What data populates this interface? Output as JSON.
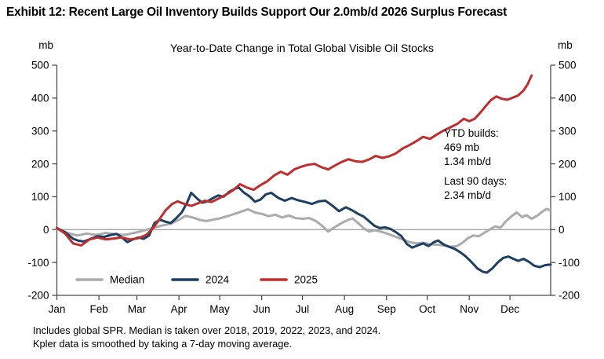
{
  "header": {
    "title": "Exhibit 12: Recent Large Oil Inventory Builds Support Our 2.0mb/d 2026 Surplus Forecast"
  },
  "chart_data": {
    "type": "line",
    "title": "Year-to-Date Change in Total Global Visible Oil Stocks",
    "y_unit_label": "mb",
    "ylim": [
      -200,
      500
    ],
    "yticks": [
      500,
      400,
      300,
      200,
      100,
      0,
      "-100",
      "-200"
    ],
    "ytick_values": [
      500,
      400,
      300,
      200,
      100,
      0,
      -100,
      -200
    ],
    "x_categories": [
      "Jan",
      "Feb",
      "Mar",
      "Apr",
      "May",
      "Jun",
      "Jul",
      "Aug",
      "Sep",
      "Oct",
      "Nov",
      "Dec"
    ],
    "x_month_start_days": [
      0,
      31,
      59,
      90,
      120,
      151,
      181,
      212,
      243,
      273,
      304,
      334
    ],
    "x_axis_days": 364,
    "grid": "zero-line-only",
    "legend_position": "inside-bottom-left",
    "series": [
      {
        "name": "Median",
        "color": "#a9abae",
        "points": [
          [
            0,
            2
          ],
          [
            8,
            -10
          ],
          [
            15,
            -18
          ],
          [
            22,
            -12
          ],
          [
            29,
            -16
          ],
          [
            36,
            -10
          ],
          [
            43,
            -14
          ],
          [
            50,
            -16
          ],
          [
            57,
            -10
          ],
          [
            63,
            -4
          ],
          [
            70,
            4
          ],
          [
            77,
            12
          ],
          [
            84,
            18
          ],
          [
            90,
            30
          ],
          [
            95,
            42
          ],
          [
            100,
            37
          ],
          [
            105,
            30
          ],
          [
            110,
            26
          ],
          [
            115,
            30
          ],
          [
            120,
            34
          ],
          [
            126,
            41
          ],
          [
            131,
            48
          ],
          [
            136,
            55
          ],
          [
            141,
            62
          ],
          [
            146,
            52
          ],
          [
            151,
            48
          ],
          [
            156,
            41
          ],
          [
            161,
            45
          ],
          [
            166,
            37
          ],
          [
            171,
            43
          ],
          [
            176,
            35
          ],
          [
            181,
            33
          ],
          [
            186,
            35
          ],
          [
            191,
            26
          ],
          [
            196,
            10
          ],
          [
            200,
            -6
          ],
          [
            205,
            8
          ],
          [
            210,
            20
          ],
          [
            215,
            30
          ],
          [
            218,
            34
          ],
          [
            222,
            20
          ],
          [
            226,
            5
          ],
          [
            230,
            -6
          ],
          [
            234,
            -2
          ],
          [
            238,
            -5
          ],
          [
            242,
            -10
          ],
          [
            246,
            -16
          ],
          [
            250,
            -22
          ],
          [
            255,
            -30
          ],
          [
            260,
            -38
          ],
          [
            265,
            -42
          ],
          [
            270,
            -40
          ],
          [
            275,
            -44
          ],
          [
            280,
            -46
          ],
          [
            285,
            -48
          ],
          [
            290,
            -52
          ],
          [
            295,
            -50
          ],
          [
            299,
            -40
          ],
          [
            303,
            -26
          ],
          [
            307,
            -18
          ],
          [
            311,
            -20
          ],
          [
            315,
            -10
          ],
          [
            319,
            0
          ],
          [
            323,
            10
          ],
          [
            327,
            6
          ],
          [
            331,
            25
          ],
          [
            335,
            40
          ],
          [
            339,
            52
          ],
          [
            343,
            38
          ],
          [
            346,
            44
          ],
          [
            350,
            33
          ],
          [
            354,
            42
          ],
          [
            358,
            55
          ],
          [
            361,
            63
          ],
          [
            364,
            58
          ]
        ]
      },
      {
        "name": "2024",
        "color": "#1c3f63",
        "points": [
          [
            0,
            5
          ],
          [
            6,
            -8
          ],
          [
            12,
            -28
          ],
          [
            16,
            -34
          ],
          [
            20,
            -36
          ],
          [
            25,
            -28
          ],
          [
            30,
            -20
          ],
          [
            35,
            -22
          ],
          [
            40,
            -16
          ],
          [
            44,
            -13
          ],
          [
            48,
            -24
          ],
          [
            52,
            -38
          ],
          [
            56,
            -30
          ],
          [
            60,
            -24
          ],
          [
            64,
            -28
          ],
          [
            68,
            -18
          ],
          [
            72,
            20
          ],
          [
            76,
            30
          ],
          [
            80,
            24
          ],
          [
            84,
            20
          ],
          [
            88,
            35
          ],
          [
            92,
            52
          ],
          [
            96,
            82
          ],
          [
            99,
            112
          ],
          [
            103,
            96
          ],
          [
            107,
            82
          ],
          [
            111,
            86
          ],
          [
            115,
            96
          ],
          [
            119,
            104
          ],
          [
            123,
            100
          ],
          [
            127,
            115
          ],
          [
            131,
            124
          ],
          [
            134,
            128
          ],
          [
            138,
            112
          ],
          [
            142,
            101
          ],
          [
            146,
            85
          ],
          [
            150,
            91
          ],
          [
            154,
            107
          ],
          [
            158,
            112
          ],
          [
            163,
            97
          ],
          [
            168,
            88
          ],
          [
            173,
            96
          ],
          [
            178,
            89
          ],
          [
            183,
            84
          ],
          [
            188,
            78
          ],
          [
            193,
            86
          ],
          [
            198,
            88
          ],
          [
            203,
            73
          ],
          [
            208,
            56
          ],
          [
            213,
            68
          ],
          [
            218,
            58
          ],
          [
            222,
            48
          ],
          [
            226,
            40
          ],
          [
            230,
            26
          ],
          [
            234,
            12
          ],
          [
            238,
            5
          ],
          [
            242,
            7
          ],
          [
            246,
            2
          ],
          [
            250,
            -8
          ],
          [
            254,
            -20
          ],
          [
            258,
            -44
          ],
          [
            262,
            -55
          ],
          [
            266,
            -48
          ],
          [
            270,
            -42
          ],
          [
            274,
            -50
          ],
          [
            278,
            -38
          ],
          [
            281,
            -33
          ],
          [
            285,
            -45
          ],
          [
            289,
            -52
          ],
          [
            293,
            -58
          ],
          [
            297,
            -68
          ],
          [
            301,
            -80
          ],
          [
            305,
            -96
          ],
          [
            310,
            -118
          ],
          [
            314,
            -128
          ],
          [
            317,
            -131
          ],
          [
            321,
            -118
          ],
          [
            325,
            -100
          ],
          [
            329,
            -86
          ],
          [
            333,
            -82
          ],
          [
            336,
            -88
          ],
          [
            340,
            -95
          ],
          [
            344,
            -89
          ],
          [
            348,
            -98
          ],
          [
            352,
            -110
          ],
          [
            356,
            -114
          ],
          [
            360,
            -108
          ],
          [
            364,
            -106
          ]
        ]
      },
      {
        "name": "2025",
        "color": "#be2e2f",
        "points": [
          [
            0,
            5
          ],
          [
            6,
            -12
          ],
          [
            12,
            -42
          ],
          [
            18,
            -48
          ],
          [
            24,
            -30
          ],
          [
            30,
            -24
          ],
          [
            36,
            -30
          ],
          [
            42,
            -27
          ],
          [
            48,
            -24
          ],
          [
            54,
            -30
          ],
          [
            60,
            -26
          ],
          [
            66,
            -16
          ],
          [
            71,
            5
          ],
          [
            75,
            28
          ],
          [
            80,
            58
          ],
          [
            85,
            78
          ],
          [
            89,
            86
          ],
          [
            94,
            78
          ],
          [
            99,
            72
          ],
          [
            104,
            80
          ],
          [
            109,
            88
          ],
          [
            114,
            84
          ],
          [
            119,
            94
          ],
          [
            125,
            107
          ],
          [
            130,
            120
          ],
          [
            135,
            138
          ],
          [
            140,
            128
          ],
          [
            145,
            121
          ],
          [
            150,
            135
          ],
          [
            155,
            147
          ],
          [
            160,
            164
          ],
          [
            165,
            176
          ],
          [
            170,
            167
          ],
          [
            175,
            183
          ],
          [
            180,
            191
          ],
          [
            185,
            197
          ],
          [
            190,
            200
          ],
          [
            195,
            190
          ],
          [
            200,
            183
          ],
          [
            205,
            195
          ],
          [
            210,
            206
          ],
          [
            215,
            214
          ],
          [
            220,
            208
          ],
          [
            225,
            206
          ],
          [
            230,
            213
          ],
          [
            235,
            224
          ],
          [
            240,
            218
          ],
          [
            245,
            223
          ],
          [
            250,
            232
          ],
          [
            255,
            247
          ],
          [
            260,
            257
          ],
          [
            265,
            269
          ],
          [
            270,
            282
          ],
          [
            275,
            276
          ],
          [
            280,
            289
          ],
          [
            285,
            301
          ],
          [
            290,
            311
          ],
          [
            295,
            321
          ],
          [
            300,
            337
          ],
          [
            304,
            330
          ],
          [
            308,
            337
          ],
          [
            312,
            355
          ],
          [
            316,
            375
          ],
          [
            320,
            394
          ],
          [
            324,
            405
          ],
          [
            328,
            398
          ],
          [
            332,
            395
          ],
          [
            336,
            401
          ],
          [
            340,
            408
          ],
          [
            344,
            423
          ],
          [
            347,
            442
          ],
          [
            350,
            469
          ]
        ]
      }
    ],
    "annotation": {
      "ytd_label": "YTD builds:",
      "ytd_mb": "469 mb",
      "ytd_rate": "1.34 mb/d",
      "last90_label": "Last 90 days:",
      "last90_rate": "2.34 mb/d"
    }
  },
  "footnotes": {
    "line1": "Includes global SPR. Median is taken over 2018, 2019, 2022, 2023, and 2024.",
    "line2": "Kpler data is smoothed by taking a 7-day moving average."
  }
}
